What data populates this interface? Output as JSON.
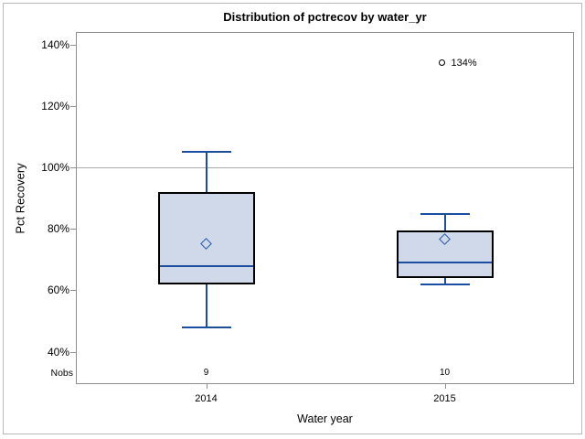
{
  "title": "Distribution of pctrecov by water_yr",
  "chart_data": {
    "type": "boxplot",
    "title": "Distribution of pctrecov by water_yr",
    "xlabel": "Water year",
    "ylabel": "Pct Recovery",
    "ylim": [
      40,
      140
    ],
    "ytick_values": [
      40,
      60,
      80,
      100,
      120,
      140
    ],
    "ytick_labels": [
      "40%",
      "60%",
      "80%",
      "100%",
      "120%",
      "140%"
    ],
    "reference_line": 100,
    "grid": "off",
    "legend": "none",
    "nobs_label": "Nobs",
    "categories": [
      "2014",
      "2015"
    ],
    "series": [
      {
        "category": "2014",
        "nobs": 9,
        "whisker_low": 48,
        "q1": 62,
        "median": 68,
        "q3": 92,
        "whisker_high": 105,
        "mean": 75,
        "outliers": []
      },
      {
        "category": "2015",
        "nobs": 10,
        "whisker_low": 62,
        "q1": 64,
        "median": 69,
        "q3": 79.5,
        "whisker_high": 85,
        "mean": 76.5,
        "outliers": [
          {
            "value": 134,
            "label": "134%"
          }
        ]
      }
    ],
    "colors": {
      "box_fill": "#cfd9e9",
      "box_border": "#000000",
      "whisker": "#1b4da1",
      "median": "#1b4da1",
      "mean_marker": "#2356a8",
      "outlier_marker": "#000000",
      "reference_line": "#a9a9a9",
      "frame": "#8e8e8e",
      "text": "#000000"
    }
  }
}
